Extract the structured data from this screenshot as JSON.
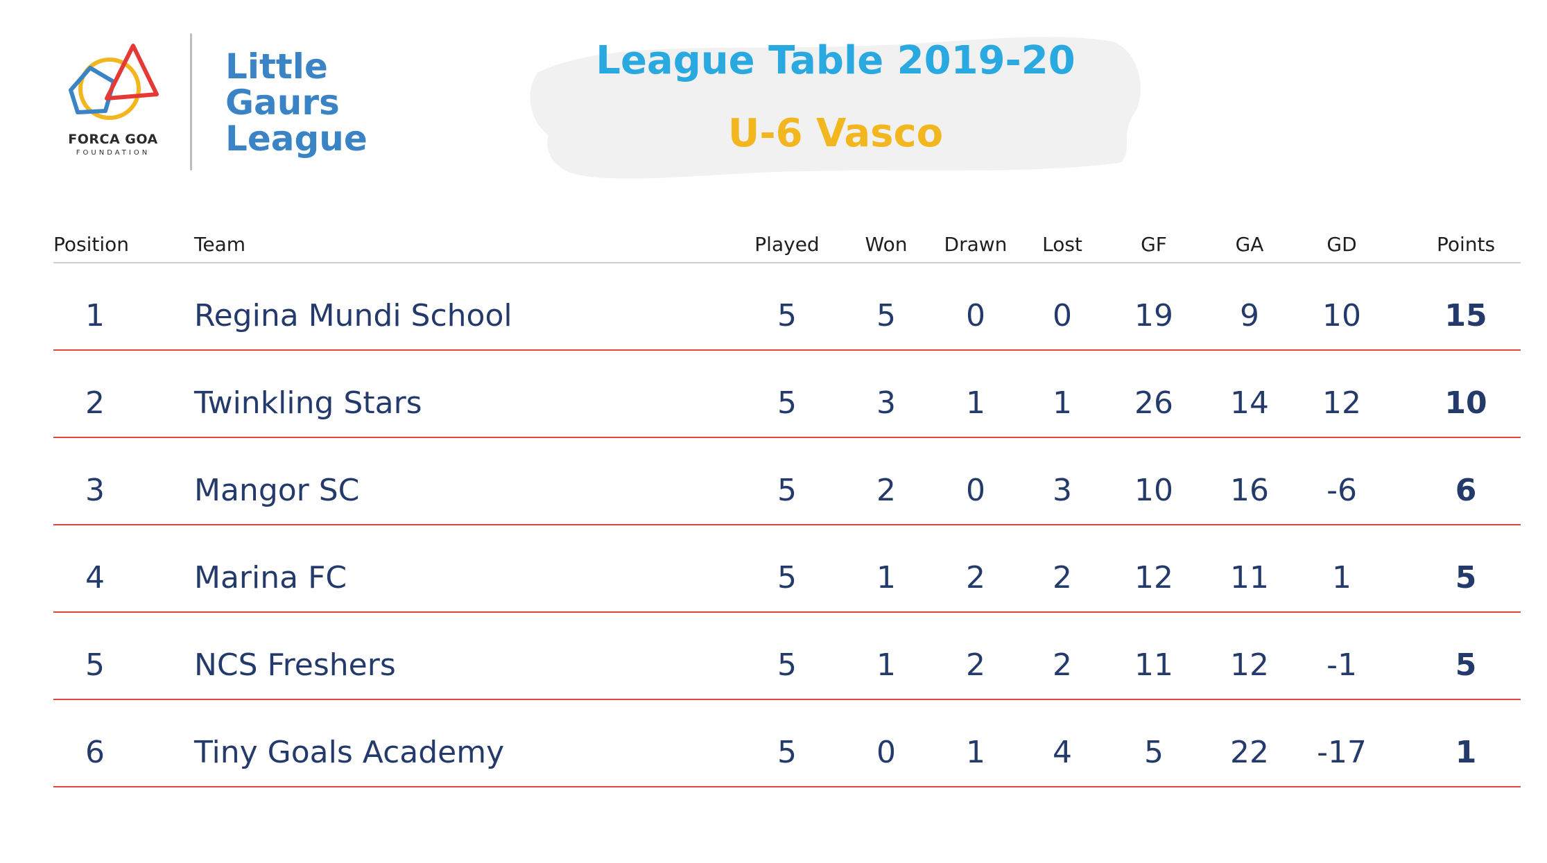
{
  "logo": {
    "foundation_name": "FORCA GOA",
    "foundation_sub": "FOUNDATION",
    "league_line1": "Little",
    "league_line2": "Gaurs",
    "league_line3": "League",
    "colors": {
      "red": "#e53935",
      "blue": "#3a84c6",
      "yellow": "#f2b71f",
      "text": "#3a84c6"
    }
  },
  "header": {
    "title": "League Table 2019-20",
    "subtitle": "U-6 Vasco",
    "title_color": "#29a9e0",
    "subtitle_color": "#f2b71f"
  },
  "table": {
    "columns": {
      "position": "Position",
      "team": "Team",
      "played": "Played",
      "won": "Won",
      "drawn": "Drawn",
      "lost": "Lost",
      "gf": "GF",
      "ga": "GA",
      "gd": "GD",
      "points": "Points"
    },
    "rows": [
      {
        "position": "1",
        "team": "Regina Mundi School",
        "played": "5",
        "won": "5",
        "drawn": "0",
        "lost": "0",
        "gf": "19",
        "ga": "9",
        "gd": "10",
        "points": "15"
      },
      {
        "position": "2",
        "team": "Twinkling Stars",
        "played": "5",
        "won": "3",
        "drawn": "1",
        "lost": "1",
        "gf": "26",
        "ga": "14",
        "gd": "12",
        "points": "10"
      },
      {
        "position": "3",
        "team": "Mangor SC",
        "played": "5",
        "won": "2",
        "drawn": "0",
        "lost": "3",
        "gf": "10",
        "ga": "16",
        "gd": "-6",
        "points": "6"
      },
      {
        "position": "4",
        "team": "Marina FC",
        "played": "5",
        "won": "1",
        "drawn": "2",
        "lost": "2",
        "gf": "12",
        "ga": "11",
        "gd": "1",
        "points": "5"
      },
      {
        "position": "5",
        "team": "NCS Freshers",
        "played": "5",
        "won": "1",
        "drawn": "2",
        "lost": "2",
        "gf": "11",
        "ga": "12",
        "gd": "-1",
        "points": "5"
      },
      {
        "position": "6",
        "team": "Tiny Goals Academy",
        "played": "5",
        "won": "0",
        "drawn": "1",
        "lost": "4",
        "gf": "5",
        "ga": "22",
        "gd": "-17",
        "points": "1"
      }
    ],
    "row_divider_color": "#e0443a",
    "text_color": "#243a6b"
  }
}
